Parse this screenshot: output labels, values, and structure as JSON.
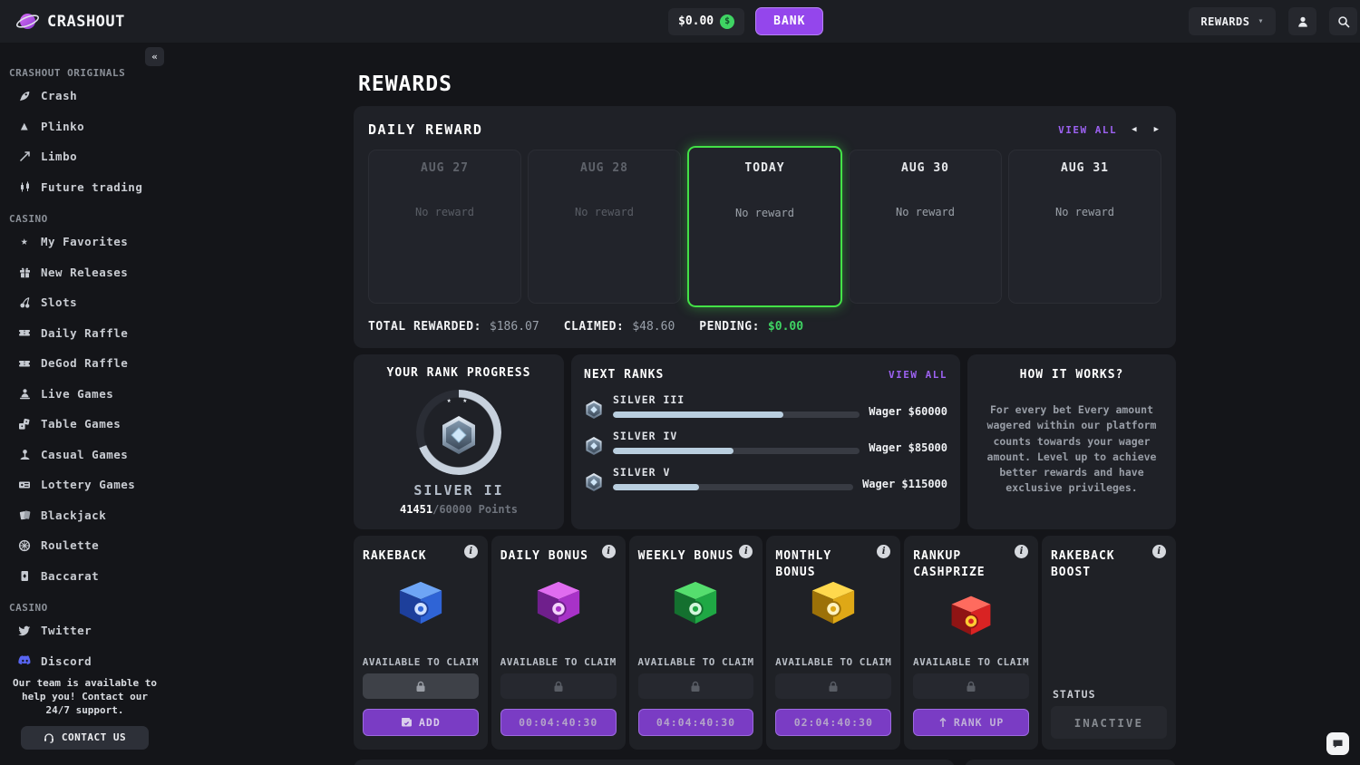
{
  "colors": {
    "accent_purple": "#9446ec",
    "today_green": "#43e247",
    "pending_green": "#3fd463",
    "discord_blue": "#5865F2",
    "panel_bg": "#1f2127",
    "page_bg": "#141519"
  },
  "header": {
    "brand": "CRASHOUT",
    "balance": "$0.00",
    "coin_symbol": "$",
    "bank_label": "BANK",
    "nav_dropdown_label": "REWARDS"
  },
  "sidebar": {
    "collapse_glyph": "«",
    "sections": [
      {
        "label": "CRASHOUT ORIGINALS",
        "items": [
          {
            "icon": "rocket-icon",
            "label": "Crash"
          },
          {
            "icon": "plinko-pyramid-icon",
            "label": "Plinko"
          },
          {
            "icon": "limbo-arrow-icon",
            "label": "Limbo"
          },
          {
            "icon": "candlestick-icon",
            "label": "Future trading"
          }
        ]
      },
      {
        "label": "CASINO",
        "items": [
          {
            "icon": "star-icon",
            "label": "My Favorites"
          },
          {
            "icon": "gift-icon",
            "label": "New Releases"
          },
          {
            "icon": "cherry-icon",
            "label": "Slots"
          },
          {
            "icon": "ticket-icon",
            "label": "Daily Raffle"
          },
          {
            "icon": "ticket-icon",
            "label": "DeGod Raffle"
          },
          {
            "icon": "dealer-icon",
            "label": "Live Games"
          },
          {
            "icon": "dice-icon",
            "label": "Table Games"
          },
          {
            "icon": "joystick-icon",
            "label": "Casual Games"
          },
          {
            "icon": "lottery-ticket-icon",
            "label": "Lottery Games"
          },
          {
            "icon": "playing-cards-icon",
            "label": "Blackjack"
          },
          {
            "icon": "roulette-wheel-icon",
            "label": "Roulette"
          },
          {
            "icon": "card-icon",
            "label": "Baccarat"
          }
        ]
      },
      {
        "label": "CASINO",
        "items": [
          {
            "icon": "twitter-icon",
            "label": "Twitter"
          },
          {
            "icon": "discord-icon",
            "label": "Discord"
          }
        ]
      }
    ],
    "support_text": "Our team is available to help you! Contact our 24/7 support.",
    "contact_label": "CONTACT US"
  },
  "page_title": "REWARDS",
  "daily_reward": {
    "title": "DAILY REWARD",
    "view_all": "VIEW ALL",
    "prev_glyph": "◀",
    "next_glyph": "▶",
    "days": [
      {
        "label": "AUG 27",
        "reward": "No reward",
        "state": "past"
      },
      {
        "label": "AUG 28",
        "reward": "No reward",
        "state": "past"
      },
      {
        "label": "TODAY",
        "reward": "No reward",
        "state": "today"
      },
      {
        "label": "AUG 30",
        "reward": "No reward",
        "state": "future"
      },
      {
        "label": "AUG 31",
        "reward": "No reward",
        "state": "future"
      }
    ],
    "totals": {
      "rewarded_label": "TOTAL REWARDED:",
      "rewarded_value": "$186.07",
      "claimed_label": "CLAIMED:",
      "claimed_value": "$48.60",
      "pending_label": "PENDING:",
      "pending_value": "$0.00"
    }
  },
  "rank_progress": {
    "title": "YOUR RANK PROGRESS",
    "rank": "SILVER II",
    "stars": "★ ★",
    "points_current": "41451",
    "points_rest": "/60000 Points",
    "percent": 69
  },
  "next_ranks": {
    "title": "NEXT RANKS",
    "view_all": "VIEW ALL",
    "ranks": [
      {
        "name": "SILVER III",
        "wager": "Wager $60000",
        "percent": 69
      },
      {
        "name": "SILVER IV",
        "wager": "Wager $85000",
        "percent": 49
      },
      {
        "name": "SILVER V",
        "wager": "Wager $115000",
        "percent": 36
      }
    ]
  },
  "how_it_works": {
    "title": "HOW IT WORKS?",
    "body": "For every bet Every amount wagered within our platform counts towards your wager amount. Level up to achieve better rewards and have exclusive privileges."
  },
  "bonus_cards": [
    {
      "title": "RAKEBACK",
      "chest": "blue-chest",
      "claim_label": "AVAILABLE TO CLAIM",
      "action_label": "ADD"
    },
    {
      "title": "DAILY BONUS",
      "chest": "purple-chest",
      "claim_label": "AVAILABLE TO CLAIM",
      "action_label": "00:04:40:30"
    },
    {
      "title": "WEEKLY BONUS",
      "chest": "green-chest",
      "claim_label": "AVAILABLE TO CLAIM",
      "action_label": "04:04:40:30"
    },
    {
      "title": "MONTHLY BONUS",
      "chest": "gold-chest",
      "claim_label": "AVAILABLE TO CLAIM",
      "action_label": "02:04:40:30"
    },
    {
      "title": "RANKUP CASHPRIZE",
      "chest": "red-chest",
      "claim_label": "AVAILABLE TO CLAIM",
      "action_label": "RANK UP"
    },
    {
      "title": "RAKEBACK BOOST",
      "status_label": "STATUS",
      "status_value": "INACTIVE"
    }
  ]
}
